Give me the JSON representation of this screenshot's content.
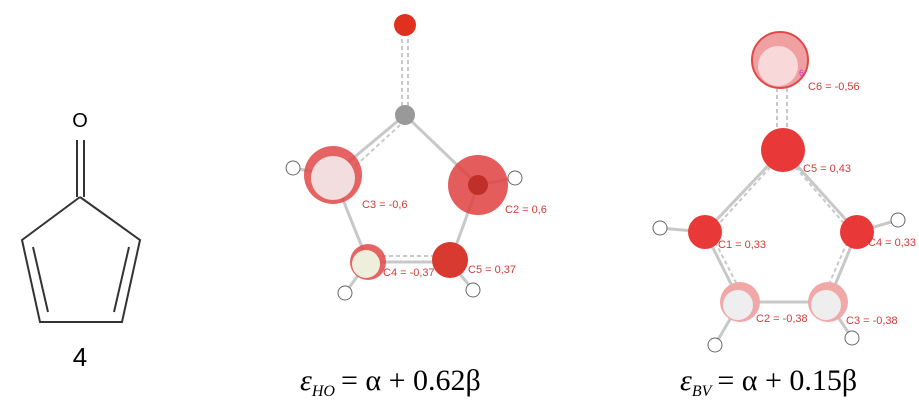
{
  "structure": {
    "oxygen": "O",
    "label": "4"
  },
  "homo": {
    "coefficients": [
      "C3 = -0,6",
      "C2 = 0,6",
      "C4 = -0,37",
      "C5 = 0,37"
    ],
    "equation": {
      "symbol": "ε",
      "subscript": "HO",
      "rhs": "= α + 0.62β"
    }
  },
  "lumo": {
    "atom_marker": "6",
    "coefficients": [
      "C6 = -0,56",
      "C5 = 0,43",
      "C1 = 0,33",
      "C4 = 0,33",
      "C2 = -0,38",
      "C3 = -0,38"
    ],
    "equation": {
      "symbol": "ε",
      "subscript": "BV",
      "rhs": "= α + 0.15β"
    }
  }
}
